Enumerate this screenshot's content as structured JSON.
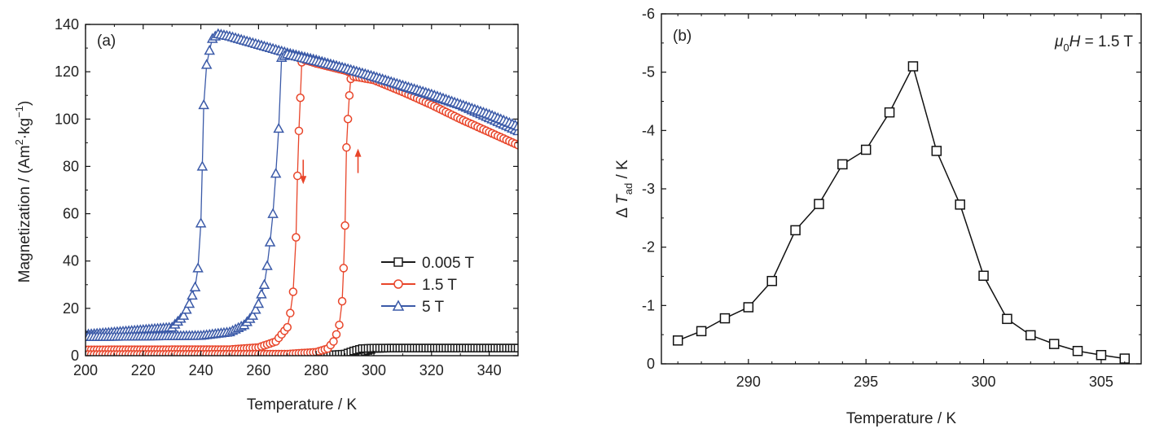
{
  "chart_data": [
    {
      "type": "scatter",
      "panel_label": "(a)",
      "xlabel": "Temperature / K",
      "ylabel": "Magnetization / (Am²·kg⁻¹)",
      "ylabel_parts": {
        "main": "Magnetization / (Am",
        "sup1": "2",
        "mid": "·kg",
        "sup2": "−1",
        "end": ")"
      },
      "xlim": [
        200,
        350
      ],
      "ylim": [
        0,
        140
      ],
      "xticks": [
        200,
        220,
        240,
        260,
        280,
        300,
        320,
        340
      ],
      "yticks": [
        0,
        20,
        40,
        60,
        80,
        100,
        120,
        140
      ],
      "legend_position": "center-right",
      "series": [
        {
          "name": "0.005 T",
          "color": "#1a1a1a",
          "marker": "square",
          "curves": [
            {
              "x": [
                200,
                290,
                294,
                297,
                300,
                305,
                350
              ],
              "y": [
                0.3,
                0.3,
                0.6,
                1.8,
                3.0,
                3.2,
                3.2
              ]
            },
            {
              "x": [
                200,
                285,
                290,
                293,
                296,
                300,
                350
              ],
              "y": [
                0.3,
                0.3,
                0.7,
                2.0,
                3.0,
                3.2,
                3.2
              ]
            }
          ]
        },
        {
          "name": "1.5 T",
          "color": "#e8452a",
          "marker": "circle",
          "curves": [
            {
              "x": [
                200,
                250,
                260,
                266,
                268,
                270,
                271,
                272,
                273,
                273.5,
                274,
                274.5,
                275,
                276,
                280,
                290,
                300,
                310,
                320,
                330,
                340,
                350
              ],
              "y": [
                2.5,
                2.6,
                3.5,
                6,
                9,
                12,
                18,
                27,
                50,
                76,
                95,
                109,
                124,
                125,
                123.5,
                120.5,
                116.5,
                111.5,
                106,
                100,
                94.5,
                89
              ]
            },
            {
              "x": [
                200,
                270,
                280,
                284,
                286,
                287,
                288,
                289,
                289.5,
                290,
                290.5,
                291,
                291.5,
                292,
                293,
                300,
                310,
                320,
                330,
                340,
                350
              ],
              "y": [
                0.5,
                0.7,
                1.5,
                3,
                6,
                9,
                13,
                23,
                37,
                55,
                88,
                100,
                110,
                117,
                118,
                116.5,
                111.5,
                106,
                100,
                94.5,
                89
              ]
            }
          ]
        },
        {
          "name": "5 T",
          "color": "#3b5aa8",
          "marker": "triangle",
          "curves": [
            {
              "x": [
                200,
                230,
                234,
                236,
                238,
                239,
                240,
                240.5,
                241,
                242,
                243,
                244,
                246,
                250,
                260,
                270,
                280,
                290,
                300,
                310,
                320,
                330,
                340,
                350
              ],
              "y": [
                9,
                12,
                17,
                22,
                29,
                37,
                56,
                80,
                106,
                123,
                129,
                134,
                136,
                135,
                131.5,
                128,
                125,
                121.5,
                118,
                114,
                110,
                106,
                100.5,
                95
              ]
            },
            {
              "x": [
                200,
                240,
                250,
                255,
                258,
                260,
                262,
                263,
                264,
                265,
                266,
                267,
                268,
                270,
                280,
                290,
                300,
                320,
                340,
                350
              ],
              "y": [
                8,
                8.5,
                10,
                13,
                17,
                22,
                30,
                38,
                48,
                60,
                77,
                96,
                126,
                127.5,
                124.5,
                121.5,
                118,
                110.5,
                102,
                97
              ]
            }
          ]
        }
      ],
      "annotations": [
        {
          "type": "arrow-down",
          "x": 275.5,
          "y": 78,
          "color": "#e8452a"
        },
        {
          "type": "arrow-up",
          "x": 294.5,
          "y": 82,
          "color": "#e8452a"
        }
      ]
    },
    {
      "type": "line",
      "panel_label": "(b)",
      "annotation_parts": {
        "mu": "μ",
        "sub": "0",
        "H": "H",
        "rest": " = 1.5 T"
      },
      "xlabel": "Temperature / K",
      "ylabel_parts": {
        "pre": "Δ",
        "T": "T",
        "sub": "ad",
        "rest": " / K"
      },
      "xlim": [
        286.3,
        306.7
      ],
      "ylim": [
        0,
        -6
      ],
      "xticks": [
        290,
        295,
        300,
        305
      ],
      "yticks": [
        0,
        -1,
        -2,
        -3,
        -4,
        -5,
        -6
      ],
      "ytick_labels": [
        "0",
        "-1",
        "-2",
        "-3",
        "-4",
        "-5",
        "-6"
      ],
      "marker": "square",
      "color": "#111111",
      "x": [
        287,
        288,
        289,
        290,
        291,
        292,
        293,
        294,
        295,
        296,
        297,
        298,
        299,
        300,
        301,
        302,
        303,
        304,
        305,
        306
      ],
      "y": [
        -0.4,
        -0.56,
        -0.78,
        -0.97,
        -1.42,
        -2.29,
        -2.74,
        -3.42,
        -3.67,
        -4.31,
        -5.1,
        -3.65,
        -2.73,
        -1.51,
        -0.77,
        -0.49,
        -0.34,
        -0.22,
        -0.15,
        -0.09
      ]
    }
  ]
}
